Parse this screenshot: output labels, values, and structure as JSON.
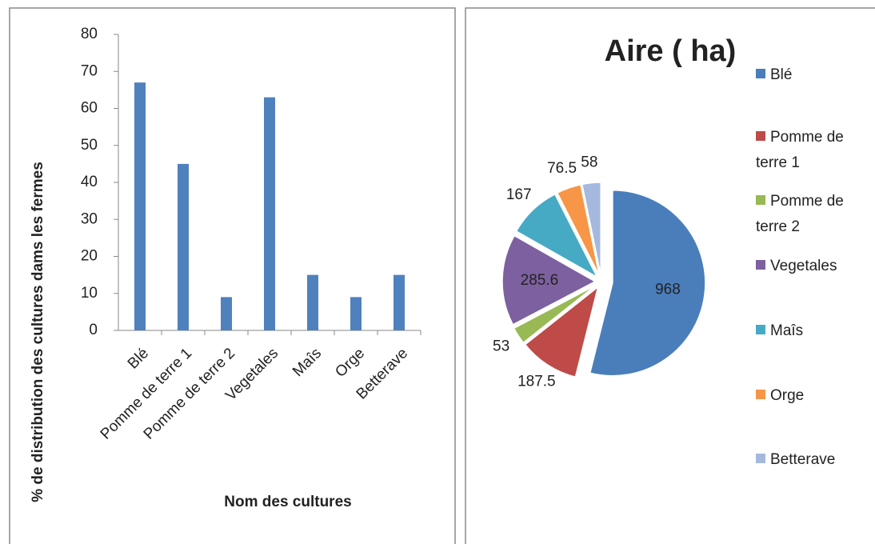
{
  "chart_data": [
    {
      "type": "bar",
      "xlabel": "Nom des cultures",
      "ylabel": "% de distribution des cultures dams les fermes",
      "categories": [
        "Blé",
        "Pomme de terre 1",
        "Pomme de terre 2",
        "Vegetales",
        "Maîs",
        "Orge",
        "Betterave"
      ],
      "values": [
        67,
        45,
        9,
        63,
        15,
        9,
        15
      ],
      "color": "#4f81bd",
      "ylim": [
        0,
        80
      ],
      "yticks": [
        0,
        10,
        20,
        30,
        40,
        50,
        60,
        70,
        80
      ],
      "grid": false
    },
    {
      "type": "pie",
      "title": "Aire ( ha)",
      "categories": [
        "Blé",
        "Pomme de terre 1",
        "Pomme de terre 2",
        "Vegetales",
        "Maîs",
        "Orge",
        "Betterave"
      ],
      "values": [
        968,
        187.5,
        53,
        285.6,
        167,
        76.5,
        58
      ],
      "colors": [
        "#4a7ebb",
        "#be4b48",
        "#98b954",
        "#7d60a0",
        "#46aac5",
        "#f79646",
        "#a5b8de"
      ],
      "legend": "right"
    }
  ]
}
